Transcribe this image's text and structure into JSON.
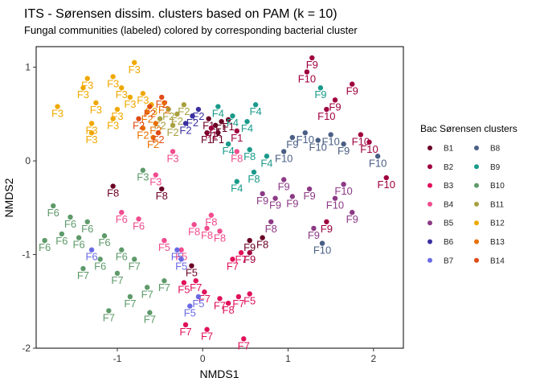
{
  "chart_data": {
    "type": "scatter",
    "title": "ITS - Sørensen dissim. clusters based on PAM (k = 10)",
    "subtitle": "Fungal communities (labeled) colored by corresponding bacterial cluster",
    "xlabel": "NMDS1",
    "ylabel": "NMDS2",
    "xlim": [
      -1.95,
      2.35
    ],
    "ylim": [
      -2.0,
      1.22
    ],
    "xticks": [
      -1,
      0,
      1,
      2
    ],
    "yticks": [
      -2,
      -1,
      0,
      1
    ],
    "grid": false,
    "legend_position": "right",
    "legend_title": "Bac Sørensen clusters",
    "series": [
      {
        "name": "B1",
        "color": "#6A0024",
        "points": [
          {
            "x": 0.07,
            "y": 0.45,
            "label": "F1"
          },
          {
            "x": 0.15,
            "y": 0.38,
            "label": "F1"
          },
          {
            "x": 0.22,
            "y": 0.42,
            "label": "F1"
          },
          {
            "x": 0.3,
            "y": 0.44,
            "label": "F1"
          },
          {
            "x": 0.05,
            "y": 0.3,
            "label": "F1"
          },
          {
            "x": 0.18,
            "y": 0.3,
            "label": "F1"
          },
          {
            "x": -1.05,
            "y": -0.27,
            "label": "F8"
          },
          {
            "x": -0.48,
            "y": -0.3,
            "label": "F8"
          },
          {
            "x": 0.55,
            "y": -0.85,
            "label": "F9"
          },
          {
            "x": 0.7,
            "y": -0.82,
            "label": "F8"
          },
          {
            "x": -0.13,
            "y": -1.12,
            "label": "F5"
          }
        ]
      },
      {
        "name": "B2",
        "color": "#A0003E",
        "points": [
          {
            "x": 1.28,
            "y": 1.1,
            "label": "F9"
          },
          {
            "x": 1.22,
            "y": 0.95,
            "label": "F10"
          },
          {
            "x": 1.75,
            "y": 0.82,
            "label": "F9"
          },
          {
            "x": 1.55,
            "y": 0.65,
            "label": "F9"
          },
          {
            "x": 1.45,
            "y": 0.55,
            "label": "F10"
          },
          {
            "x": 1.85,
            "y": 0.28,
            "label": "F10"
          },
          {
            "x": 1.95,
            "y": 0.2,
            "label": "F10"
          },
          {
            "x": 2.15,
            "y": -0.18,
            "label": "F10"
          },
          {
            "x": 0.4,
            "y": 0.32,
            "label": "F1"
          },
          {
            "x": 0.1,
            "y": 0.35,
            "label": "F1"
          },
          {
            "x": 1.45,
            "y": -0.65,
            "label": "F9"
          },
          {
            "x": 0.55,
            "y": -0.98,
            "label": "F9"
          }
        ]
      },
      {
        "name": "B3",
        "color": "#E0105A",
        "points": [
          {
            "x": -0.08,
            "y": -1.28,
            "label": "F7"
          },
          {
            "x": 0.02,
            "y": -1.4,
            "label": "F7"
          },
          {
            "x": 0.2,
            "y": -1.47,
            "label": "F7"
          },
          {
            "x": 0.3,
            "y": -1.52,
            "label": "F8"
          },
          {
            "x": 0.42,
            "y": -1.45,
            "label": "F7"
          },
          {
            "x": 0.55,
            "y": -1.42,
            "label": "F5"
          },
          {
            "x": -0.2,
            "y": -1.75,
            "label": "F7"
          },
          {
            "x": 0.05,
            "y": -1.8,
            "label": "F7"
          },
          {
            "x": 0.48,
            "y": -1.9,
            "label": "F7"
          },
          {
            "x": 0.35,
            "y": -1.05,
            "label": "F7"
          },
          {
            "x": 0.45,
            "y": -0.98,
            "label": "F7"
          },
          {
            "x": -0.22,
            "y": -1.3,
            "label": "F5"
          }
        ]
      },
      {
        "name": "B4",
        "color": "#F04C8E",
        "points": [
          {
            "x": -0.55,
            "y": -0.15,
            "label": "F3"
          },
          {
            "x": -0.35,
            "y": 0.1,
            "label": "F3"
          },
          {
            "x": -0.95,
            "y": -0.55,
            "label": "F6"
          },
          {
            "x": -0.75,
            "y": -0.62,
            "label": "F6"
          },
          {
            "x": -0.1,
            "y": -0.68,
            "label": "F8"
          },
          {
            "x": 0.05,
            "y": -0.72,
            "label": "F8"
          },
          {
            "x": 0.2,
            "y": -0.75,
            "label": "F8"
          },
          {
            "x": 0.4,
            "y": 0.1,
            "label": "F8"
          },
          {
            "x": -0.45,
            "y": -0.85,
            "label": "F5"
          },
          {
            "x": -0.25,
            "y": -0.95,
            "label": "F5"
          },
          {
            "x": 0.1,
            "y": -0.58,
            "label": "F8"
          }
        ]
      },
      {
        "name": "B5",
        "color": "#8C3A86",
        "points": [
          {
            "x": 0.7,
            "y": -0.35,
            "label": "F9"
          },
          {
            "x": 0.85,
            "y": -0.4,
            "label": "F9"
          },
          {
            "x": 1.05,
            "y": -0.38,
            "label": "F9"
          },
          {
            "x": 1.25,
            "y": -0.3,
            "label": "F9"
          },
          {
            "x": 1.55,
            "y": -0.4,
            "label": "F10"
          },
          {
            "x": 1.75,
            "y": -0.55,
            "label": "F9"
          },
          {
            "x": 0.8,
            "y": -0.65,
            "label": "F8"
          },
          {
            "x": 1.3,
            "y": -0.72,
            "label": "F9"
          },
          {
            "x": 0.95,
            "y": -0.2,
            "label": "F9"
          },
          {
            "x": 1.65,
            "y": -0.25,
            "label": "F10"
          }
        ]
      },
      {
        "name": "B6",
        "color": "#3A2FA0",
        "points": [
          {
            "x": -0.12,
            "y": 0.48,
            "label": "F2"
          },
          {
            "x": -0.05,
            "y": 0.55,
            "label": "F2"
          },
          {
            "x": -0.2,
            "y": 0.4,
            "label": "F2"
          }
        ]
      },
      {
        "name": "B7",
        "color": "#6A6AE6",
        "points": [
          {
            "x": -1.3,
            "y": -0.95,
            "label": "F6"
          },
          {
            "x": -0.25,
            "y": -1.05,
            "label": "F5"
          },
          {
            "x": -0.15,
            "y": -1.55,
            "label": "F5"
          },
          {
            "x": -0.3,
            "y": -0.95,
            "label": "F5"
          },
          {
            "x": -0.05,
            "y": -1.45,
            "label": "F5"
          }
        ]
      },
      {
        "name": "B8",
        "color": "#4A5F85",
        "points": [
          {
            "x": 1.05,
            "y": 0.25,
            "label": "F9"
          },
          {
            "x": 1.2,
            "y": 0.3,
            "label": "F10"
          },
          {
            "x": 1.35,
            "y": 0.22,
            "label": "F10"
          },
          {
            "x": 1.5,
            "y": 0.28,
            "label": "F10"
          },
          {
            "x": 1.65,
            "y": 0.18,
            "label": "F9"
          },
          {
            "x": 2.05,
            "y": 0.05,
            "label": "F10"
          },
          {
            "x": 1.4,
            "y": -0.88,
            "label": "F10"
          },
          {
            "x": 0.95,
            "y": 0.1,
            "label": "F10"
          }
        ]
      },
      {
        "name": "B9",
        "color": "#1A9A8A",
        "points": [
          {
            "x": 0.62,
            "y": 0.6,
            "label": "F4"
          },
          {
            "x": 0.52,
            "y": 0.42,
            "label": "F4"
          },
          {
            "x": 0.35,
            "y": 0.48,
            "label": "F4"
          },
          {
            "x": 0.3,
            "y": 0.18,
            "label": "F4"
          },
          {
            "x": 0.55,
            "y": 0.12,
            "label": "F8"
          },
          {
            "x": 0.6,
            "y": -0.12,
            "label": "F8"
          },
          {
            "x": 0.4,
            "y": -0.22,
            "label": "F4"
          },
          {
            "x": 1.38,
            "y": 0.78,
            "label": "F9"
          },
          {
            "x": 0.75,
            "y": 0.05,
            "label": "F4"
          },
          {
            "x": 0.18,
            "y": 0.58,
            "label": "F4"
          }
        ]
      },
      {
        "name": "B10",
        "color": "#5E9A6A",
        "points": [
          {
            "x": -1.85,
            "y": -0.85,
            "label": "F6"
          },
          {
            "x": -1.65,
            "y": -0.78,
            "label": "F6"
          },
          {
            "x": -1.45,
            "y": -0.82,
            "label": "F6"
          },
          {
            "x": -1.55,
            "y": -0.6,
            "label": "F6"
          },
          {
            "x": -1.35,
            "y": -0.65,
            "label": "F6"
          },
          {
            "x": -1.15,
            "y": -0.8,
            "label": "F6"
          },
          {
            "x": -1.2,
            "y": -1.05,
            "label": "F6"
          },
          {
            "x": -1.0,
            "y": -1.2,
            "label": "F7"
          },
          {
            "x": -0.8,
            "y": -1.05,
            "label": "F7"
          },
          {
            "x": -0.65,
            "y": -1.35,
            "label": "F7"
          },
          {
            "x": -0.85,
            "y": -1.45,
            "label": "F7"
          },
          {
            "x": -1.1,
            "y": -1.6,
            "label": "F7"
          },
          {
            "x": -0.62,
            "y": -1.62,
            "label": "F7"
          },
          {
            "x": -0.45,
            "y": -1.28,
            "label": "F7"
          },
          {
            "x": -0.7,
            "y": -0.1,
            "label": "F3"
          },
          {
            "x": -1.4,
            "y": -1.15,
            "label": "F7"
          },
          {
            "x": -1.75,
            "y": -0.48,
            "label": "F6"
          },
          {
            "x": -0.95,
            "y": -0.95,
            "label": "F6"
          }
        ]
      },
      {
        "name": "B11",
        "color": "#A8A040",
        "points": [
          {
            "x": -0.4,
            "y": 0.55,
            "label": "F2"
          },
          {
            "x": -0.3,
            "y": 0.5,
            "label": "F2"
          },
          {
            "x": -0.5,
            "y": 0.45,
            "label": "F2"
          },
          {
            "x": -0.22,
            "y": 0.6,
            "label": "F2"
          },
          {
            "x": -0.35,
            "y": 0.38,
            "label": "F2"
          }
        ]
      },
      {
        "name": "B12",
        "color": "#F0A800",
        "points": [
          {
            "x": -0.8,
            "y": 1.05,
            "label": "F3"
          },
          {
            "x": -1.35,
            "y": 0.88,
            "label": "F3"
          },
          {
            "x": -1.05,
            "y": 0.9,
            "label": "F3"
          },
          {
            "x": -0.95,
            "y": 0.78,
            "label": "F3"
          },
          {
            "x": -1.25,
            "y": 0.62,
            "label": "F3"
          },
          {
            "x": -1.0,
            "y": 0.55,
            "label": "F3"
          },
          {
            "x": -0.85,
            "y": 0.68,
            "label": "F3"
          },
          {
            "x": -1.7,
            "y": 0.58,
            "label": "F3"
          },
          {
            "x": -1.3,
            "y": 0.4,
            "label": "F3"
          },
          {
            "x": -1.05,
            "y": 0.45,
            "label": "F3"
          },
          {
            "x": -1.3,
            "y": 0.3,
            "label": "F3"
          },
          {
            "x": -0.7,
            "y": 0.72,
            "label": "F3"
          },
          {
            "x": -0.6,
            "y": 0.6,
            "label": "F3"
          },
          {
            "x": -1.4,
            "y": 0.78,
            "label": "F3"
          }
        ]
      },
      {
        "name": "B13",
        "color": "#E87000",
        "points": [
          {
            "x": -0.65,
            "y": 0.52,
            "label": "F2"
          },
          {
            "x": -0.55,
            "y": 0.4,
            "label": "F2"
          },
          {
            "x": -0.7,
            "y": 0.35,
            "label": "F2"
          },
          {
            "x": -0.45,
            "y": 0.62,
            "label": "F2"
          },
          {
            "x": -0.58,
            "y": 0.25,
            "label": "F2"
          }
        ]
      },
      {
        "name": "B14",
        "color": "#E04A14",
        "points": [
          {
            "x": -0.48,
            "y": 0.68,
            "label": "F2"
          },
          {
            "x": -0.62,
            "y": 0.58,
            "label": "F2"
          },
          {
            "x": -0.52,
            "y": 0.3,
            "label": "F2"
          },
          {
            "x": -0.75,
            "y": 0.45,
            "label": "F2"
          }
        ]
      }
    ]
  }
}
